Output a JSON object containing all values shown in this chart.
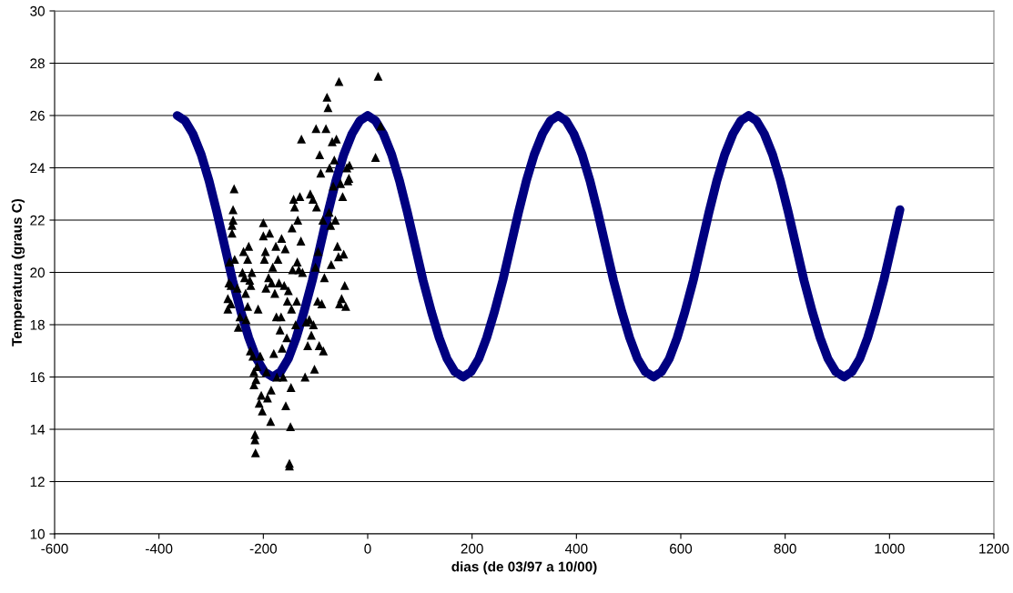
{
  "chart_data": {
    "type": "scatter",
    "xlabel": "dias (de 03/97 a 10/00)",
    "ylabel": "Temperatura (graus C)",
    "xlim": [
      -600,
      1200
    ],
    "xticks": [
      -600,
      -400,
      -200,
      0,
      200,
      400,
      600,
      800,
      1000,
      1200
    ],
    "ylim": [
      10,
      30
    ],
    "yticks": [
      10,
      12,
      14,
      16,
      18,
      20,
      22,
      24,
      26,
      28,
      30
    ],
    "grid": "y",
    "legend": false,
    "series": [
      {
        "type": "line",
        "color": "#000080",
        "marker": "none",
        "line_style": "solid",
        "x": [
          -365,
          -350,
          -335,
          -319,
          -304,
          -289,
          -274,
          -259,
          -243,
          -228,
          -213,
          -198,
          -182,
          -167,
          -152,
          -137,
          -122,
          -106,
          -91,
          -76,
          -61,
          -46,
          -30,
          -15,
          0,
          15,
          30,
          46,
          61,
          76,
          91,
          106,
          122,
          137,
          152,
          167,
          183,
          198,
          213,
          228,
          243,
          259,
          274,
          289,
          304,
          319,
          335,
          350,
          365,
          380,
          395,
          411,
          426,
          441,
          456,
          471,
          487,
          502,
          517,
          532,
          548,
          563,
          578,
          593,
          608,
          624,
          639,
          654,
          669,
          684,
          700,
          715,
          730,
          745,
          760,
          776,
          791,
          806,
          821,
          836,
          852,
          867,
          882,
          897,
          913,
          928,
          943,
          958,
          973,
          989,
          1004,
          1020
        ],
        "values": [
          26,
          25.8,
          25.3,
          24.5,
          23.5,
          22.3,
          21,
          19.7,
          18.5,
          17.5,
          16.7,
          16.2,
          16,
          16.2,
          16.7,
          17.5,
          18.5,
          19.7,
          21,
          22.3,
          23.5,
          24.5,
          25.3,
          25.8,
          26,
          25.8,
          25.3,
          24.5,
          23.5,
          22.3,
          21,
          19.7,
          18.5,
          17.5,
          16.7,
          16.2,
          16,
          16.2,
          16.7,
          17.5,
          18.5,
          19.7,
          21,
          22.3,
          23.5,
          24.5,
          25.3,
          25.8,
          26,
          25.8,
          25.3,
          24.5,
          23.5,
          22.3,
          21,
          19.7,
          18.5,
          17.5,
          16.7,
          16.2,
          16,
          16.2,
          16.7,
          17.5,
          18.5,
          19.7,
          21,
          22.3,
          23.5,
          24.5,
          25.3,
          25.8,
          26,
          25.8,
          25.3,
          24.5,
          23.5,
          22.3,
          21,
          19.7,
          18.5,
          17.5,
          16.7,
          16.2,
          16,
          16.2,
          16.7,
          17.5,
          18.5,
          19.7,
          21,
          22.4
        ]
      },
      {
        "color": "#000000",
        "marker": "triangle",
        "x": [
          -268,
          -268,
          -266,
          -265,
          -262,
          -260,
          -258,
          -258,
          -256,
          -260,
          -262,
          -255,
          -250,
          -248,
          -245,
          -240,
          -238,
          -236,
          -234,
          -233,
          -230,
          -230,
          -228,
          -226,
          -225,
          -224,
          -222,
          -220,
          -218,
          -218,
          -216,
          -216,
          -215,
          -214,
          -212,
          -210,
          -208,
          -206,
          -204,
          -202,
          -200,
          -200,
          -198,
          -196,
          -195,
          -194,
          -192,
          -190,
          -188,
          -186,
          -185,
          -184,
          -182,
          -180,
          -178,
          -176,
          -175,
          -174,
          -172,
          -170,
          -168,
          -166,
          -165,
          -164,
          -162,
          -160,
          -158,
          -157,
          -155,
          -154,
          -152,
          -150,
          -150,
          -148,
          -147,
          -146,
          -145,
          -144,
          -142,
          -140,
          -138,
          -136,
          -135,
          -134,
          -132,
          -130,
          -128,
          -127,
          -125,
          -120,
          -118,
          -115,
          -112,
          -110,
          -108,
          -105,
          -104,
          -102,
          -100,
          -99,
          -98,
          -96,
          -95,
          -93,
          -92,
          -90,
          -88,
          -86,
          -85,
          -83,
          -80,
          -78,
          -76,
          -74,
          -73,
          -71,
          -70,
          -68,
          -66,
          -64,
          -62,
          -60,
          -58,
          -56,
          -55,
          -54,
          -52,
          -50,
          -48,
          -46,
          -44,
          -42,
          -40,
          -38,
          -36,
          -35,
          15,
          20,
          25
        ],
        "values": [
          18.6,
          19.0,
          19.6,
          20.4,
          19.5,
          21.5,
          22.0,
          22.4,
          23.2,
          21.8,
          18.8,
          20.5,
          19.4,
          17.9,
          18.3,
          20.0,
          20.8,
          19.8,
          19.2,
          18.2,
          18.7,
          20.5,
          21.0,
          19.7,
          17.0,
          19.5,
          20.0,
          16.8,
          16.2,
          15.7,
          13.8,
          13.6,
          13.1,
          15.9,
          16.4,
          18.6,
          15.0,
          16.8,
          15.3,
          14.7,
          21.4,
          21.9,
          20.5,
          20.8,
          19.4,
          16.2,
          15.2,
          19.8,
          21.5,
          14.3,
          15.5,
          19.6,
          20.2,
          16.9,
          19.2,
          21.0,
          18.3,
          16.0,
          20.5,
          19.6,
          17.8,
          18.3,
          21.3,
          17.1,
          16.0,
          19.5,
          20.9,
          14.9,
          17.5,
          18.9,
          19.3,
          12.7,
          12.6,
          14.1,
          15.6,
          18.6,
          21.7,
          20.1,
          22.8,
          22.5,
          18.0,
          18.9,
          20.4,
          22.0,
          20.1,
          22.9,
          21.2,
          25.1,
          20.0,
          16.0,
          18.1,
          17.2,
          18.2,
          23.0,
          17.6,
          22.8,
          18.0,
          16.3,
          20.2,
          25.5,
          22.5,
          18.9,
          20.8,
          17.2,
          24.5,
          23.8,
          18.8,
          22.0,
          17.0,
          19.8,
          25.5,
          26.7,
          26.3,
          22.3,
          24.0,
          21.8,
          20.3,
          25.0,
          23.3,
          24.3,
          22.0,
          25.1,
          21.0,
          20.6,
          27.3,
          18.8,
          23.4,
          19.0,
          22.9,
          20.7,
          19.5,
          18.7,
          24.0,
          23.5,
          23.6,
          24.1,
          24.4,
          27.5,
          25.6
        ]
      }
    ]
  }
}
